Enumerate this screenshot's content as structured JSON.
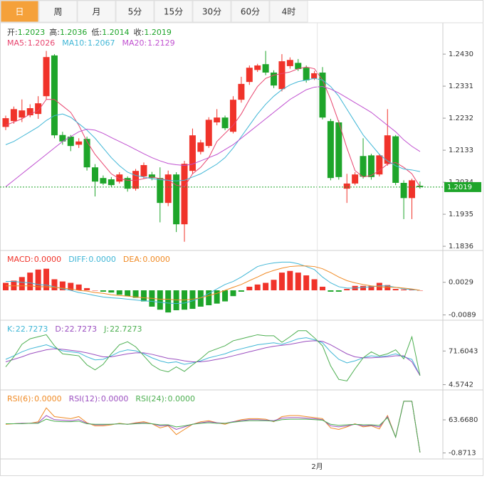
{
  "tabs": {
    "items": [
      "日",
      "周",
      "月",
      "5分",
      "15分",
      "30分",
      "60分",
      "4时"
    ],
    "active": 0,
    "active_color": "#f5a13a"
  },
  "chart_data": [
    {
      "type": "candlestick",
      "header": [
        {
          "label": "开:",
          "value": 1.2023
        },
        {
          "label": "高:",
          "value": 1.2036
        },
        {
          "label": "低:",
          "value": 1.2014
        },
        {
          "label": "收:",
          "value": 1.2019
        }
      ],
      "header_color": "#333333",
      "header_value_color": "#1ea52a",
      "categories": [
        null,
        null,
        null,
        null,
        null,
        null,
        null,
        null,
        null,
        null,
        null,
        null,
        null,
        null,
        null,
        null,
        null,
        null,
        null,
        null,
        null,
        null,
        null,
        null,
        null,
        null,
        null,
        null,
        null,
        null,
        null,
        null,
        null,
        null,
        null,
        null,
        null,
        null,
        "2月",
        null,
        null,
        null,
        null,
        null,
        null,
        null,
        null,
        null,
        null,
        null,
        null,
        null
      ],
      "open": [
        1.2205,
        1.2223,
        1.2234,
        1.2241,
        1.2245,
        1.23,
        1.2426,
        1.218,
        1.2175,
        1.215,
        1.2168,
        1.208,
        1.2047,
        1.2043,
        1.2036,
        1.2047,
        1.2014,
        1.2052,
        1.2058,
        1.2047,
        1.197,
        1.2058,
        1.1904,
        1.2069,
        1.2128,
        1.2146,
        1.2219,
        1.2234,
        1.219,
        1.2289,
        1.2344,
        1.2381,
        1.2399,
        1.2373,
        1.2322,
        1.2393,
        1.2403,
        1.2388,
        1.2355,
        1.2373,
        1.2223,
        1.2219,
        1.2014,
        1.203,
        1.2115,
        1.2117,
        1.2058,
        1.2091,
        1.2176,
        1.2032,
        1.1985,
        1.2023
      ],
      "high": [
        1.224,
        1.2268,
        1.229,
        1.2275,
        1.23,
        1.244,
        1.243,
        1.219,
        1.218,
        1.217,
        1.2175,
        1.209,
        1.2055,
        1.205,
        1.2065,
        1.2052,
        1.2075,
        1.2095,
        1.2066,
        1.208,
        1.207,
        1.2065,
        1.21,
        1.22,
        1.2165,
        1.2235,
        1.226,
        1.224,
        1.23,
        1.236,
        1.2395,
        1.24,
        1.244,
        1.238,
        1.243,
        1.242,
        1.2415,
        1.2395,
        1.2378,
        1.239,
        1.223,
        1.2225,
        1.206,
        1.2065,
        1.217,
        1.2122,
        1.2122,
        1.226,
        1.218,
        1.204,
        1.2045,
        1.2036
      ],
      "low": [
        1.2195,
        1.2215,
        1.222,
        1.2235,
        1.223,
        1.229,
        1.217,
        1.215,
        1.213,
        1.214,
        1.207,
        1.199,
        1.2025,
        1.202,
        1.203,
        1.2005,
        1.2008,
        1.2045,
        1.204,
        1.191,
        1.196,
        1.188,
        1.185,
        1.206,
        1.212,
        1.214,
        1.221,
        1.2195,
        1.2185,
        1.228,
        1.2335,
        1.2375,
        1.2365,
        1.2325,
        1.2315,
        1.2385,
        1.2378,
        1.2342,
        1.235,
        1.2228,
        1.204,
        1.2042,
        1.197,
        1.2025,
        1.2045,
        1.2042,
        1.2052,
        1.2085,
        1.2025,
        1.192,
        1.192,
        1.2014
      ],
      "close": [
        1.2232,
        1.226,
        1.2256,
        1.2263,
        1.2278,
        1.2421,
        1.2179,
        1.216,
        1.2146,
        1.216,
        1.208,
        1.2036,
        1.203,
        1.2025,
        1.2058,
        1.2014,
        1.2069,
        1.2087,
        1.2047,
        1.197,
        1.2058,
        1.1904,
        1.2091,
        1.2179,
        1.2157,
        1.2227,
        1.2234,
        1.2201,
        1.2289,
        1.2338,
        1.2388,
        1.2395,
        1.2373,
        1.2333,
        1.2408,
        1.2412,
        1.2384,
        1.2349,
        1.2371,
        1.2234,
        1.2047,
        1.205,
        1.203,
        1.2058,
        1.2051,
        1.205,
        1.2117,
        1.2179,
        1.2032,
        1.1985,
        1.204,
        1.2019
      ],
      "up_color": "#f0332a",
      "down_color": "#1ea52a",
      "series": [
        {
          "name": "MA5:",
          "color": "#e8446e",
          "legend_value": 1.2026,
          "values": [
            1.221,
            1.222,
            1.223,
            1.2245,
            1.2255,
            1.229,
            1.229,
            1.227,
            1.225,
            1.221,
            1.216,
            1.212,
            1.209,
            1.206,
            1.2045,
            1.204,
            1.204,
            1.2045,
            1.205,
            1.2045,
            1.204,
            1.2025,
            1.202,
            1.206,
            1.208,
            1.211,
            1.216,
            1.2185,
            1.221,
            1.2245,
            1.229,
            1.233,
            1.2355,
            1.2365,
            1.237,
            1.2375,
            1.2385,
            1.239,
            1.2385,
            1.235,
            1.229,
            1.222,
            1.214,
            1.207,
            1.205,
            1.2055,
            1.207,
            1.209,
            1.2095,
            1.208,
            1.206,
            1.202
          ]
        },
        {
          "name": "MA10:",
          "color": "#3fb6d6",
          "legend_value": 1.2067,
          "values": [
            1.215,
            1.216,
            1.2175,
            1.219,
            1.2205,
            1.2225,
            1.224,
            1.2245,
            1.2235,
            1.2215,
            1.2195,
            1.217,
            1.214,
            1.211,
            1.2085,
            1.2065,
            1.2055,
            1.205,
            1.2045,
            1.2042,
            1.204,
            1.2038,
            1.204,
            1.205,
            1.206,
            1.2075,
            1.209,
            1.211,
            1.214,
            1.2175,
            1.221,
            1.2245,
            1.2275,
            1.23,
            1.232,
            1.2335,
            1.2345,
            1.235,
            1.2355,
            1.235,
            1.233,
            1.23,
            1.226,
            1.222,
            1.218,
            1.215,
            1.212,
            1.21,
            1.2085,
            1.2075,
            1.2072,
            1.2067
          ]
        },
        {
          "name": "MA20:",
          "color": "#c050d0",
          "legend_value": 1.2129,
          "values": [
            1.202,
            1.204,
            1.206,
            1.208,
            1.21,
            1.212,
            1.214,
            1.216,
            1.2175,
            1.219,
            1.2198,
            1.2195,
            1.2185,
            1.2172,
            1.216,
            1.2148,
            1.2135,
            1.2122,
            1.211,
            1.21,
            1.2092,
            1.2088,
            1.2086,
            1.209,
            1.21,
            1.211,
            1.212,
            1.2135,
            1.215,
            1.217,
            1.219,
            1.221,
            1.223,
            1.225,
            1.227,
            1.229,
            1.2305,
            1.232,
            1.2328,
            1.233,
            1.2322,
            1.231,
            1.2295,
            1.228,
            1.2265,
            1.225,
            1.223,
            1.221,
            1.219,
            1.2165,
            1.2145,
            1.2129
          ]
        }
      ],
      "ylim": [
        1.1823,
        1.2527
      ],
      "yticks": [
        {
          "value": 1.243,
          "label": "1.2430"
        },
        1.2331,
        1.2232,
        1.2133,
        1.2034,
        1.1935,
        1.1836
      ],
      "last_price": 1.2019,
      "last_price_color": "#1ea52a"
    },
    {
      "type": "macd",
      "series": [
        {
          "name": "MACD:",
          "style": "bar",
          "color": "#f0332a",
          "negative_color": "#1ea52a",
          "legend_value": {
            "value": 0,
            "label": "0.0000"
          },
          "values": [
            0.0027,
            0.0035,
            0.0048,
            0.0064,
            0.0075,
            0.0078,
            0.004,
            0.0032,
            0.0027,
            0.0021,
            0.0008,
            0,
            -0.0005,
            -0.0008,
            -0.0016,
            -0.0021,
            -0.0027,
            -0.004,
            -0.0059,
            -0.007,
            -0.008,
            -0.0072,
            -0.007,
            -0.0067,
            -0.0059,
            -0.0054,
            -0.0048,
            -0.004,
            -0.0021,
            -0.0005,
            0.0013,
            0.0021,
            0.0027,
            0.0038,
            0.0064,
            0.007,
            0.0064,
            0.0054,
            0.004,
            0.0013,
            -0.0005,
            -0.0005,
            0.0005,
            0.0016,
            0.0016,
            0.0016,
            0.0027,
            0.0019,
            0.0005,
            0.0003,
            0.0003,
            0
          ]
        },
        {
          "name": "DIFF:",
          "style": "line",
          "color": "#3fb6d6",
          "legend_value": {
            "value": 0,
            "label": "0.0000"
          },
          "values": [
            0.0032,
            0.0032,
            0.0029,
            0.0027,
            0.0021,
            0.0019,
            0.0013,
            0.0005,
            0,
            -0.0008,
            -0.0013,
            -0.0019,
            -0.0024,
            -0.0027,
            -0.0029,
            -0.0032,
            -0.0035,
            -0.0038,
            -0.004,
            -0.0043,
            -0.0046,
            -0.0048,
            -0.0046,
            -0.0038,
            -0.0027,
            -0.0011,
            0.0005,
            0.0021,
            0.0032,
            0.0048,
            0.0067,
            0.0086,
            0.0094,
            0.0099,
            0.0102,
            0.0102,
            0.0096,
            0.0086,
            0.0075,
            0.0048,
            0.0027,
            0.0013,
            0.0008,
            0.0008,
            0.0011,
            0.0013,
            0.0016,
            0.0016,
            0.0011,
            0.0005,
            0.0003,
            0
          ]
        },
        {
          "name": "DEA:",
          "style": "line",
          "color": "#f08a24",
          "legend_value": {
            "value": 0,
            "label": "0.0000"
          },
          "values": [
            0.0016,
            0.0016,
            0.0016,
            0.0016,
            0.0013,
            0.0013,
            0.0011,
            0.0008,
            0.0005,
            0,
            -0.0003,
            -0.0008,
            -0.0011,
            -0.0016,
            -0.0019,
            -0.0021,
            -0.0024,
            -0.0027,
            -0.0029,
            -0.0032,
            -0.0032,
            -0.0035,
            -0.0035,
            -0.0032,
            -0.0027,
            -0.0019,
            -0.0011,
            0,
            0.0011,
            0.0021,
            0.0035,
            0.0048,
            0.0062,
            0.0072,
            0.008,
            0.0086,
            0.0088,
            0.0088,
            0.0086,
            0.0078,
            0.0064,
            0.0048,
            0.0035,
            0.0027,
            0.0021,
            0.0016,
            0.0013,
            0.0011,
            0.0011,
            0.0008,
            0.0005,
            0
          ]
        }
      ],
      "ylim": [
        -0.0108,
        0.0144
      ],
      "yticks": [
        0.0029,
        -0.0089
      ]
    },
    {
      "type": "kdj",
      "series": [
        {
          "name": "K:",
          "style": "line",
          "color": "#3fb6d6",
          "legend_value": 22.7273,
          "values": [
            55,
            62,
            70,
            76,
            80,
            84,
            78,
            72,
            70,
            68,
            60,
            54,
            55,
            62,
            70,
            74,
            72,
            66,
            58,
            52,
            48,
            50,
            45,
            48,
            52,
            58,
            62,
            66,
            72,
            76,
            80,
            84,
            86,
            88,
            85,
            90,
            96,
            98,
            94,
            88,
            70,
            55,
            48,
            52,
            58,
            62,
            60,
            62,
            66,
            60,
            55,
            22.7273
          ]
        },
        {
          "name": "D:",
          "style": "line",
          "color": "#9b4fc0",
          "legend_value": 22.7273,
          "values": [
            50,
            55,
            60,
            66,
            70,
            74,
            76,
            75,
            73,
            71,
            68,
            64,
            60,
            60,
            63,
            66,
            68,
            68,
            65,
            61,
            57,
            55,
            52,
            50,
            50,
            52,
            55,
            58,
            62,
            66,
            70,
            74,
            78,
            81,
            83,
            85,
            88,
            91,
            92,
            91,
            84,
            75,
            66,
            60,
            58,
            58,
            59,
            60,
            62,
            62,
            50,
            22.7273
          ]
        },
        {
          "name": "J:",
          "style": "line",
          "color": "#4caf50",
          "legend_value": 22.7273,
          "values": [
            40,
            60,
            85,
            96,
            100,
            104,
            82,
            66,
            64,
            62,
            44,
            34,
            45,
            66,
            84,
            90,
            80,
            62,
            44,
            34,
            30,
            40,
            31,
            44,
            56,
            70,
            76,
            82,
            92,
            96,
            100,
            104,
            102,
            102,
            89,
            100,
            112,
            112,
            98,
            82,
            42,
            15,
            12,
            36,
            58,
            70,
            62,
            66,
            74,
            56,
            100,
            22.7273
          ]
        }
      ],
      "ylim": [
        -6,
        133
      ],
      "yticks": [
        71.6043,
        4.5742
      ]
    },
    {
      "type": "rsi",
      "series": [
        {
          "name": "RSI(6):",
          "style": "line",
          "color": "#f08a24",
          "legend_value": {
            "value": 0,
            "label": "0.0000"
          },
          "values": [
            55,
            56,
            57,
            57,
            60,
            87,
            70,
            68,
            66,
            70,
            58,
            52,
            52,
            54,
            57,
            55,
            58,
            60,
            56,
            48,
            52,
            35,
            45,
            55,
            60,
            62,
            58,
            55,
            60,
            64,
            66,
            66,
            65,
            60,
            70,
            72,
            72,
            70,
            68,
            66,
            48,
            45,
            50,
            56,
            50,
            52,
            46,
            72,
            30,
            100,
            100,
            0
          ]
        },
        {
          "name": "RSI(12):",
          "style": "line",
          "color": "#9b4fc0",
          "legend_value": {
            "value": 0,
            "label": "0.0000"
          },
          "values": [
            56,
            56,
            57,
            57,
            58,
            72,
            64,
            63,
            62,
            64,
            57,
            54,
            54,
            55,
            56,
            55,
            57,
            58,
            56,
            52,
            53,
            45,
            50,
            55,
            58,
            60,
            58,
            57,
            60,
            62,
            64,
            64,
            63,
            62,
            67,
            68,
            68,
            67,
            66,
            64,
            52,
            50,
            52,
            55,
            52,
            53,
            50,
            70,
            30,
            100,
            100,
            0
          ]
        },
        {
          "name": "RSI(24):",
          "style": "line",
          "color": "#4caf50",
          "legend_value": {
            "value": 0,
            "label": "0.0000"
          },
          "values": [
            56,
            56,
            56,
            57,
            57,
            65,
            61,
            60,
            60,
            61,
            56,
            55,
            55,
            55,
            56,
            55,
            56,
            57,
            56,
            54,
            54,
            50,
            52,
            55,
            57,
            58,
            57,
            57,
            59,
            61,
            62,
            62,
            62,
            61,
            64,
            65,
            65,
            65,
            64,
            63,
            55,
            53,
            54,
            55,
            54,
            54,
            53,
            68,
            30,
            100,
            100,
            0
          ]
        }
      ],
      "ylim": [
        -12.6,
        122
      ],
      "yticks": [
        {
          "value": 63.668,
          "label": "63.6680"
        },
        -0.8713
      ]
    }
  ]
}
